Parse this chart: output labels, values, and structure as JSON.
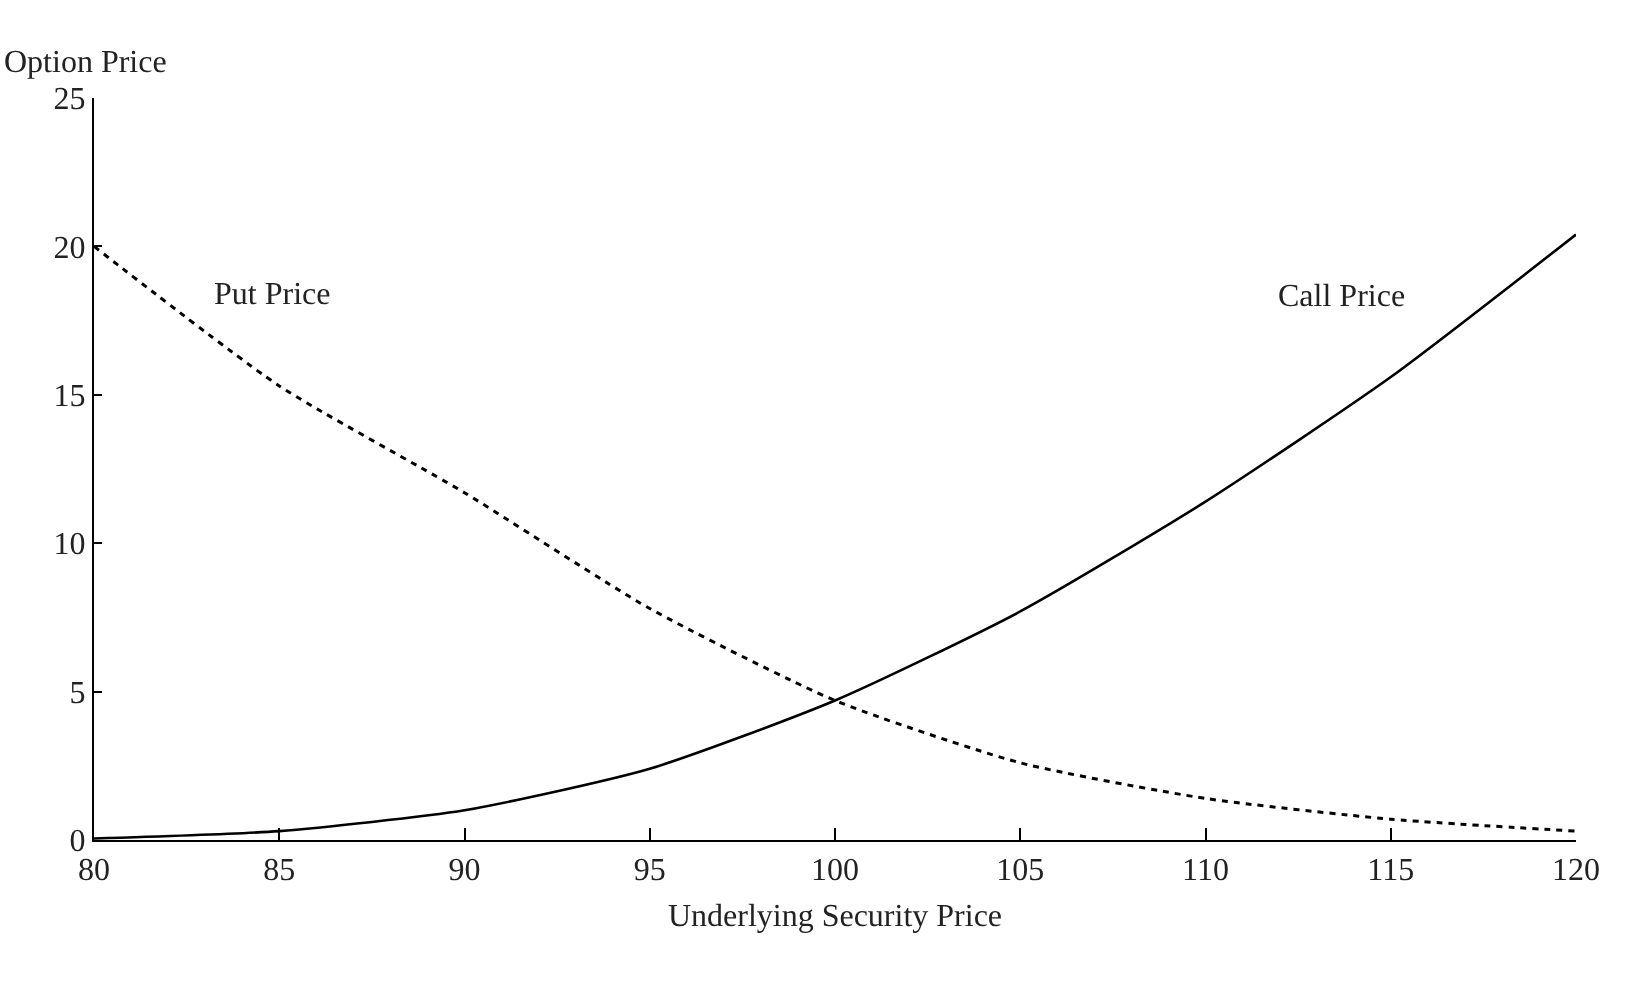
{
  "chart_data": {
    "type": "line",
    "xlabel": "Underlying Security Price",
    "ylabel": "Option Price",
    "x": [
      80,
      85,
      90,
      95,
      100,
      105,
      110,
      115,
      120
    ],
    "xlim": [
      80,
      120
    ],
    "xticks": [
      80,
      85,
      90,
      95,
      100,
      105,
      110,
      115,
      120
    ],
    "ylim": [
      0,
      25
    ],
    "yticks": [
      0,
      5,
      10,
      15,
      20,
      25
    ],
    "legend": false,
    "series": [
      {
        "name": "Put Price",
        "color": "#000000",
        "line_style": "dotted",
        "values": [
          20,
          15.3,
          11.7,
          7.8,
          4.7,
          2.6,
          1.4,
          0.7,
          0.3
        ]
      },
      {
        "name": "Call Price",
        "color": "#000000",
        "line_style": "solid",
        "values": [
          0.05,
          0.3,
          1.0,
          2.4,
          4.7,
          7.7,
          11.4,
          15.6,
          20.4
        ]
      }
    ]
  }
}
